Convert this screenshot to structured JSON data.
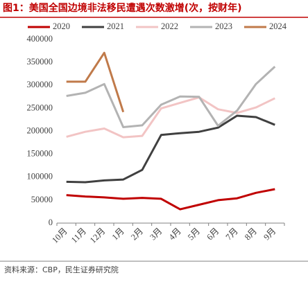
{
  "chart_data": {
    "type": "line",
    "title": "图1：美国全国边境非法移民遭遇次数激增(次，按财年)",
    "source": "资料来源：CBP，民生证券研究院",
    "categories": [
      "10月",
      "11月",
      "12月",
      "1月",
      "2月",
      "3月",
      "4月",
      "5月",
      "6月",
      "7月",
      "8月",
      "9月"
    ],
    "series": [
      {
        "name": "2020",
        "color": "#c00000",
        "values": [
          61000,
          58000,
          56000,
          53000,
          55000,
          53000,
          30000,
          40000,
          50000,
          54000,
          66000,
          74000
        ]
      },
      {
        "name": "2021",
        "color": "#404040",
        "values": [
          90000,
          89000,
          93000,
          95000,
          116000,
          192000,
          196000,
          199000,
          208000,
          234000,
          231000,
          214000
        ]
      },
      {
        "name": "2022",
        "color": "#f2c4c4",
        "values": [
          188000,
          199000,
          206000,
          187000,
          190000,
          250000,
          262000,
          274000,
          248000,
          240000,
          252000,
          272000
        ]
      },
      {
        "name": "2023",
        "color": "#b3b3b3",
        "values": [
          277000,
          284000,
          303000,
          209000,
          213000,
          258000,
          276000,
          275000,
          212000,
          245000,
          303000,
          341000
        ]
      },
      {
        "name": "2024",
        "color": "#c07a4a",
        "values": [
          308000,
          308000,
          371000,
          242000,
          null,
          null,
          null,
          null,
          null,
          null,
          null,
          null
        ]
      }
    ],
    "ylim": [
      0,
      400000
    ],
    "yticks": [
      0,
      50000,
      100000,
      150000,
      200000,
      250000,
      300000,
      350000,
      400000
    ],
    "grid": false,
    "legend": "top"
  }
}
